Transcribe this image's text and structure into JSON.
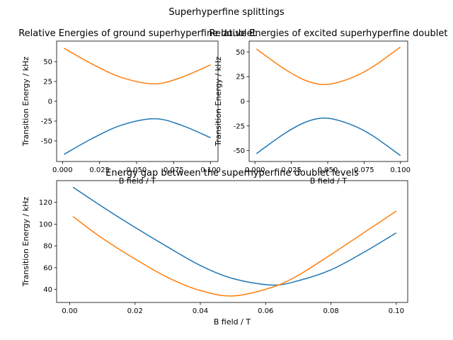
{
  "figure": {
    "suptitle": "Superhyperfine splittings"
  },
  "chart_data": [
    {
      "type": "line",
      "title": "Relative Energies of ground superhyperfine doublet",
      "xlabel": "B field / T",
      "ylabel": "Transition Energy / kHz",
      "xlim": [
        -0.004,
        0.105
      ],
      "ylim": [
        -76,
        76
      ],
      "xticks": [
        0.0,
        0.025,
        0.05,
        0.075,
        0.1
      ],
      "xtick_labels": [
        "0.000",
        "0.025",
        "0.050",
        "0.075",
        "0.100"
      ],
      "yticks": [
        -50,
        -25,
        0,
        25,
        50
      ],
      "ytick_labels": [
        "-50",
        "-25",
        "0",
        "25",
        "50"
      ],
      "grid": false,
      "x": [
        0.001,
        0.02,
        0.04,
        0.062,
        0.08,
        0.1
      ],
      "series": [
        {
          "color": "#1f77b4",
          "values": [
            -67,
            -47,
            -30,
            -22,
            -30,
            -46
          ]
        },
        {
          "color": "#ff7f0e",
          "values": [
            67,
            47,
            30,
            22,
            30,
            46
          ]
        }
      ]
    },
    {
      "type": "line",
      "title": "Relative Energies of excited superhyperfine doublet",
      "xlabel": "B field / T",
      "ylabel": "Transition Energy / kHz",
      "xlim": [
        -0.004,
        0.105
      ],
      "ylim": [
        -61,
        61
      ],
      "xticks": [
        0.0,
        0.025,
        0.05,
        0.075,
        0.1
      ],
      "xtick_labels": [
        "0.000",
        "0.025",
        "0.050",
        "0.075",
        "0.100"
      ],
      "yticks": [
        -50,
        -25,
        0,
        25,
        50
      ],
      "ytick_labels": [
        "-50",
        "-25",
        "0",
        "25",
        "50"
      ],
      "grid": false,
      "x": [
        0.001,
        0.02,
        0.035,
        0.049,
        0.065,
        0.08,
        0.1
      ],
      "series": [
        {
          "color": "#1f77b4",
          "values": [
            -53,
            -33,
            -21,
            -17,
            -23,
            -34,
            -55
          ]
        },
        {
          "color": "#ff7f0e",
          "values": [
            53,
            33,
            21,
            17,
            23,
            34,
            55
          ]
        }
      ]
    },
    {
      "type": "line",
      "title": "Energy gap between the superhyperfine doublet levels",
      "xlabel": "B field / T",
      "ylabel": "Transition Energy / kHz",
      "xlim": [
        -0.004,
        0.1035
      ],
      "ylim": [
        28,
        140
      ],
      "xticks": [
        0.0,
        0.02,
        0.04,
        0.06,
        0.08,
        0.1
      ],
      "xtick_labels": [
        "0.00",
        "0.02",
        "0.04",
        "0.06",
        "0.08",
        "0.10"
      ],
      "yticks": [
        40,
        60,
        80,
        100,
        120
      ],
      "ytick_labels": [
        "40",
        "60",
        "80",
        "100",
        "120"
      ],
      "grid": false,
      "x": [
        0.001,
        0.01,
        0.02,
        0.03,
        0.04,
        0.05,
        0.062,
        0.07,
        0.08,
        0.09,
        0.1
      ],
      "series": [
        {
          "color": "#1f77b4",
          "values": [
            134,
            116,
            97,
            79,
            62,
            50,
            44,
            48,
            58,
            74,
            92
          ]
        },
        {
          "color": "#ff7f0e",
          "values": [
            107,
            87,
            68,
            51,
            39,
            34,
            42,
            53,
            72,
            92,
            112
          ]
        }
      ]
    }
  ]
}
